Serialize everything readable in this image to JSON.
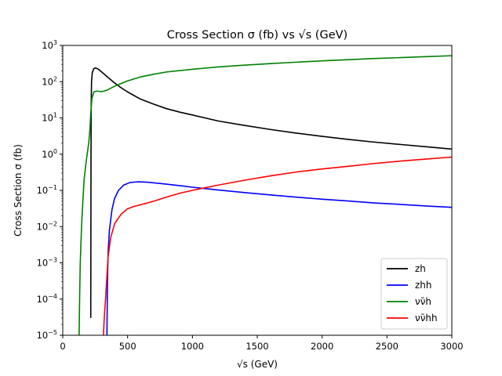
{
  "chart_data": {
    "type": "line",
    "title": "Cross Section σ (fb) vs √s (GeV)",
    "xlabel": "√s (GeV)",
    "ylabel": "Cross Section σ (fb)",
    "xlim": [
      0,
      3000
    ],
    "ylim": [
      1e-05,
      1000
    ],
    "yscale": "log",
    "grid": false,
    "legend_position": "lower-right",
    "x_ticks": [
      {
        "value": 0,
        "label": "0"
      },
      {
        "value": 500,
        "label": "500"
      },
      {
        "value": 1000,
        "label": "1000"
      },
      {
        "value": 1500,
        "label": "1500"
      },
      {
        "value": 2000,
        "label": "2000"
      },
      {
        "value": 2500,
        "label": "2500"
      },
      {
        "value": 3000,
        "label": "3000"
      }
    ],
    "y_ticks": [
      {
        "value": 1e-05,
        "base": "10",
        "exp": "−5"
      },
      {
        "value": 0.0001,
        "base": "10",
        "exp": "−4"
      },
      {
        "value": 0.001,
        "base": "10",
        "exp": "−3"
      },
      {
        "value": 0.01,
        "base": "10",
        "exp": "−2"
      },
      {
        "value": 0.1,
        "base": "10",
        "exp": "−1"
      },
      {
        "value": 1,
        "base": "10",
        "exp": "0"
      },
      {
        "value": 10,
        "base": "10",
        "exp": "1"
      },
      {
        "value": 100,
        "base": "10",
        "exp": "2"
      },
      {
        "value": 1000,
        "base": "10",
        "exp": "3"
      }
    ],
    "series": [
      {
        "name": "zh",
        "color": "#000000",
        "points": [
          [
            216,
            3e-05
          ],
          [
            217,
            0.01
          ],
          [
            218,
            1
          ],
          [
            219,
            20
          ],
          [
            222,
            100
          ],
          [
            228,
            180
          ],
          [
            240,
            230
          ],
          [
            255,
            240
          ],
          [
            275,
            220
          ],
          [
            300,
            185
          ],
          [
            350,
            130
          ],
          [
            400,
            92
          ],
          [
            450,
            68
          ],
          [
            500,
            52
          ],
          [
            600,
            33
          ],
          [
            700,
            24
          ],
          [
            800,
            18
          ],
          [
            900,
            14.5
          ],
          [
            1000,
            12
          ],
          [
            1200,
            8.2
          ],
          [
            1400,
            6.2
          ],
          [
            1600,
            4.8
          ],
          [
            1800,
            3.8
          ],
          [
            2000,
            3.1
          ],
          [
            2200,
            2.55
          ],
          [
            2400,
            2.15
          ],
          [
            2600,
            1.85
          ],
          [
            2800,
            1.6
          ],
          [
            3000,
            1.38
          ]
        ]
      },
      {
        "name": "zhh",
        "color": "#0000ff",
        "points": [
          [
            340,
            5e-06
          ],
          [
            342,
            3e-05
          ],
          [
            345,
            0.0003
          ],
          [
            350,
            0.002
          ],
          [
            360,
            0.008
          ],
          [
            380,
            0.03
          ],
          [
            400,
            0.06
          ],
          [
            430,
            0.1
          ],
          [
            470,
            0.14
          ],
          [
            520,
            0.165
          ],
          [
            580,
            0.172
          ],
          [
            650,
            0.168
          ],
          [
            750,
            0.155
          ],
          [
            900,
            0.135
          ],
          [
            1000,
            0.122
          ],
          [
            1200,
            0.102
          ],
          [
            1400,
            0.087
          ],
          [
            1600,
            0.075
          ],
          [
            1800,
            0.065
          ],
          [
            2000,
            0.057
          ],
          [
            2200,
            0.051
          ],
          [
            2400,
            0.045
          ],
          [
            2600,
            0.041
          ],
          [
            2800,
            0.037
          ],
          [
            3000,
            0.034
          ]
        ]
      },
      {
        "name": "νν̄h",
        "color": "#008000",
        "points": [
          [
            125,
            5e-06
          ],
          [
            130,
            0.0001
          ],
          [
            135,
            0.001
          ],
          [
            145,
            0.01
          ],
          [
            155,
            0.05
          ],
          [
            165,
            0.2
          ],
          [
            180,
            0.6
          ],
          [
            200,
            2
          ],
          [
            210,
            5
          ],
          [
            215,
            12
          ],
          [
            225,
            35
          ],
          [
            240,
            52
          ],
          [
            260,
            55
          ],
          [
            300,
            53
          ],
          [
            340,
            58
          ],
          [
            400,
            75
          ],
          [
            500,
            105
          ],
          [
            600,
            135
          ],
          [
            700,
            160
          ],
          [
            800,
            185
          ],
          [
            1000,
            220
          ],
          [
            1200,
            255
          ],
          [
            1400,
            285
          ],
          [
            1600,
            315
          ],
          [
            1800,
            345
          ],
          [
            2000,
            375
          ],
          [
            2200,
            405
          ],
          [
            2400,
            435
          ],
          [
            2600,
            460
          ],
          [
            2800,
            490
          ],
          [
            3000,
            520
          ]
        ]
      },
      {
        "name": "νν̄hh",
        "color": "#ff0000",
        "points": [
          [
            310,
            5e-06
          ],
          [
            320,
            3e-05
          ],
          [
            330,
            0.0001
          ],
          [
            340,
            0.0004
          ],
          [
            350,
            0.0015
          ],
          [
            370,
            0.005
          ],
          [
            400,
            0.012
          ],
          [
            450,
            0.022
          ],
          [
            500,
            0.031
          ],
          [
            550,
            0.036
          ],
          [
            600,
            0.04
          ],
          [
            700,
            0.05
          ],
          [
            800,
            0.065
          ],
          [
            900,
            0.083
          ],
          [
            1000,
            0.1
          ],
          [
            1200,
            0.14
          ],
          [
            1400,
            0.19
          ],
          [
            1600,
            0.25
          ],
          [
            1800,
            0.32
          ],
          [
            2000,
            0.39
          ],
          [
            2200,
            0.46
          ],
          [
            2400,
            0.55
          ],
          [
            2600,
            0.64
          ],
          [
            2800,
            0.73
          ],
          [
            3000,
            0.83
          ]
        ]
      }
    ]
  }
}
